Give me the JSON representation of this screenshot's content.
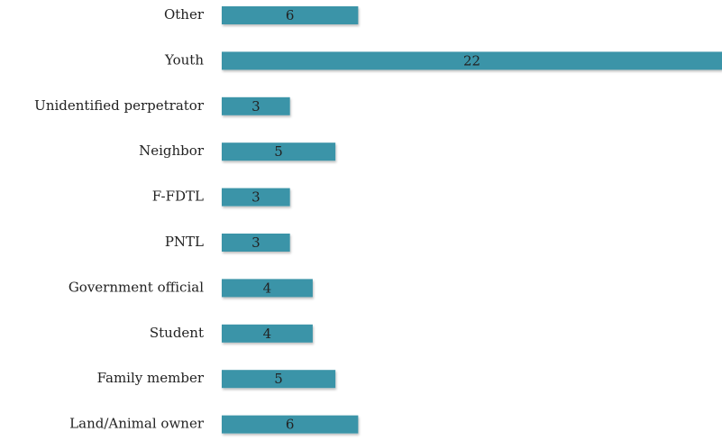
{
  "chart_data": {
    "type": "barh",
    "categories": [
      "Other",
      "Youth",
      "Unidentified perpetrator",
      "Neighbor",
      "F-FDTL",
      "PNTL",
      "Government official",
      "Student",
      "Family member",
      "Land/Animal owner"
    ],
    "values": [
      6,
      22,
      3,
      5,
      3,
      3,
      4,
      4,
      5,
      6
    ],
    "color": "#3b94a8"
  }
}
